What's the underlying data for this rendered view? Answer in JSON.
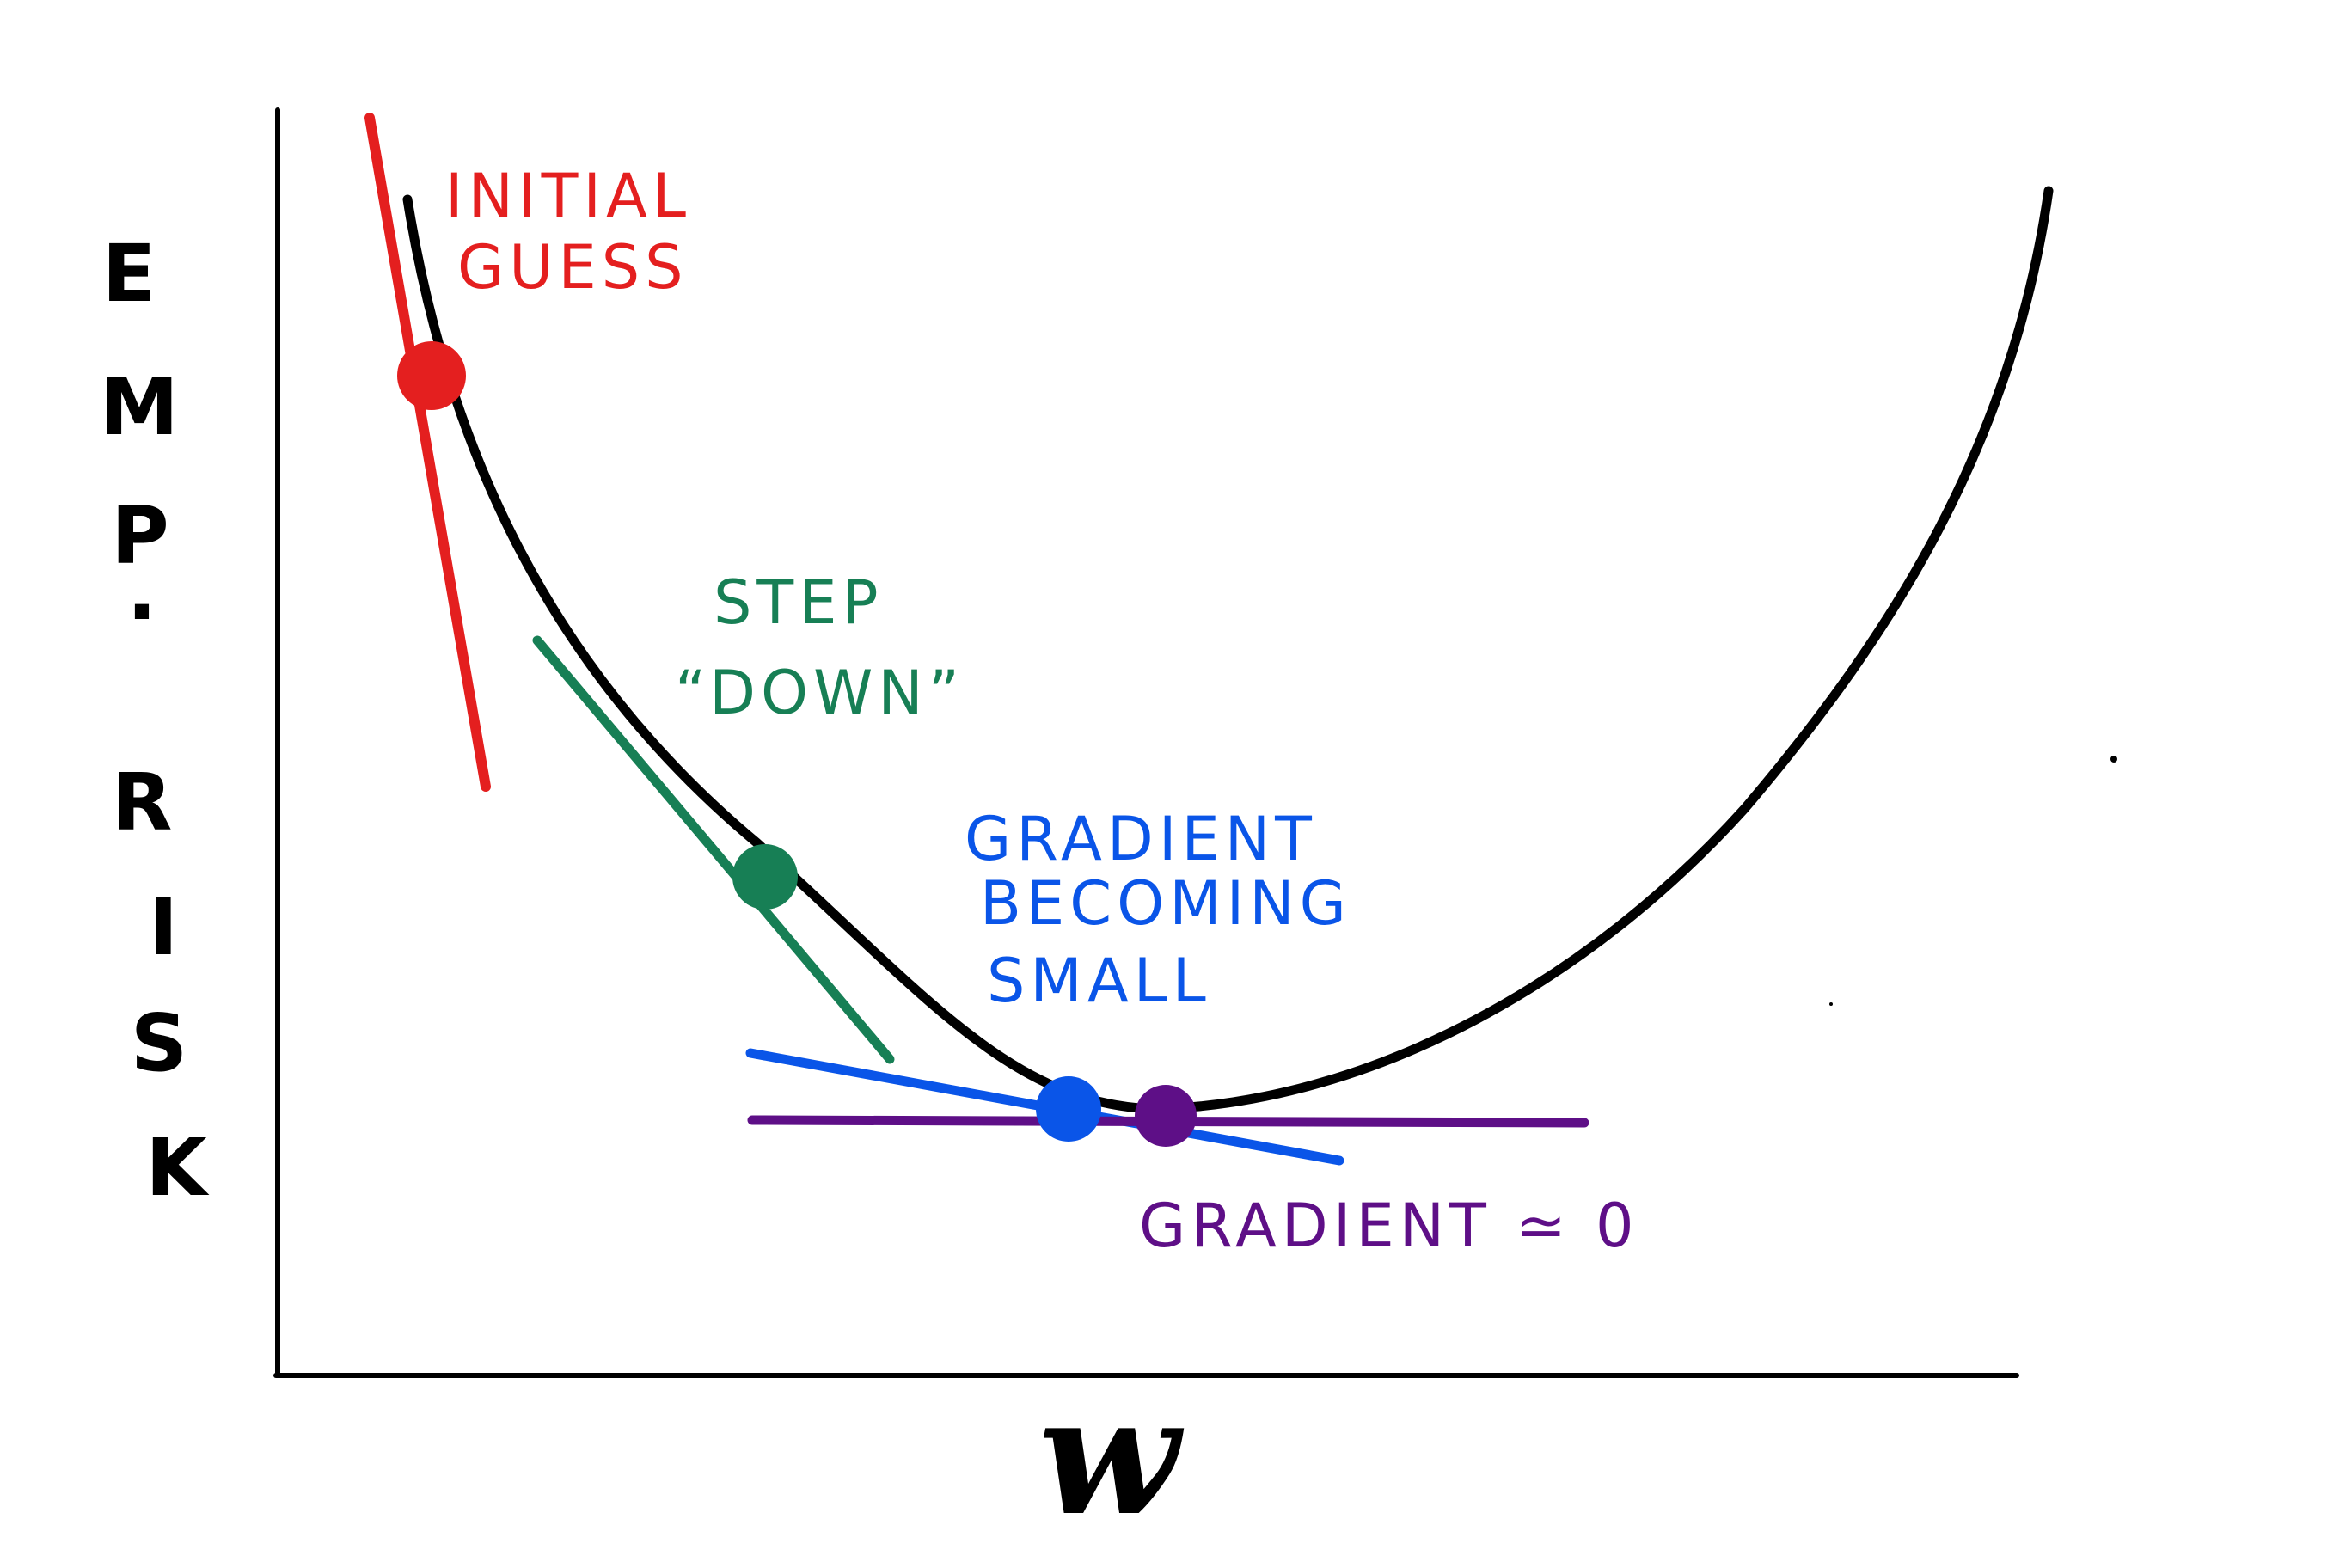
{
  "axes": {
    "y_label_letters": [
      "E",
      "M",
      "P",
      ".",
      "R",
      "I",
      "S",
      "K"
    ],
    "x_label": "w"
  },
  "annotations": {
    "initial_line1": "INITIAL",
    "initial_line2": "GUESS",
    "step_line1": "STEP",
    "step_line2": "“DOWN”",
    "becoming_line1": "GRADIENT",
    "becoming_line2": "BECOMING",
    "becoming_line3": "SMALL",
    "zero": "GRADIENT ≃ 0"
  },
  "colors": {
    "curve": "#000000",
    "initial": "#e41f1f",
    "step": "#177f55",
    "small": "#0a55e8",
    "zero": "#5e0f87"
  }
}
